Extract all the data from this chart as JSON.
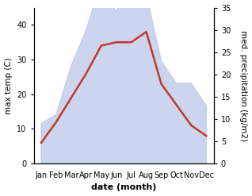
{
  "months": [
    "Jan",
    "Feb",
    "Mar",
    "Apr",
    "May",
    "Jun",
    "Jul",
    "Aug",
    "Sep",
    "Oct",
    "Nov",
    "Dec"
  ],
  "temp": [
    6,
    12,
    19,
    26,
    34,
    35,
    35,
    38,
    23,
    17,
    11,
    8
  ],
  "precip": [
    9,
    11,
    22,
    30,
    41,
    34,
    44,
    38,
    23,
    18,
    18,
    13
  ],
  "temp_color": "#c0392b",
  "precip_fill_color": "#b8c4e8",
  "precip_fill_alpha": 0.7,
  "ylim_left": [
    0,
    45
  ],
  "ylim_right": [
    0,
    35
  ],
  "yticks_left": [
    0,
    10,
    20,
    30,
    40
  ],
  "yticks_right": [
    0,
    5,
    10,
    15,
    20,
    25,
    30,
    35
  ],
  "xlabel": "date (month)",
  "ylabel_left": "max temp (C)",
  "ylabel_right": "med. precipitation (kg/m2)",
  "bg_color": "#ffffff",
  "temp_linewidth": 1.8,
  "tick_fontsize": 7,
  "xlabel_fontsize": 8,
  "ylabel_fontsize": 7.5
}
